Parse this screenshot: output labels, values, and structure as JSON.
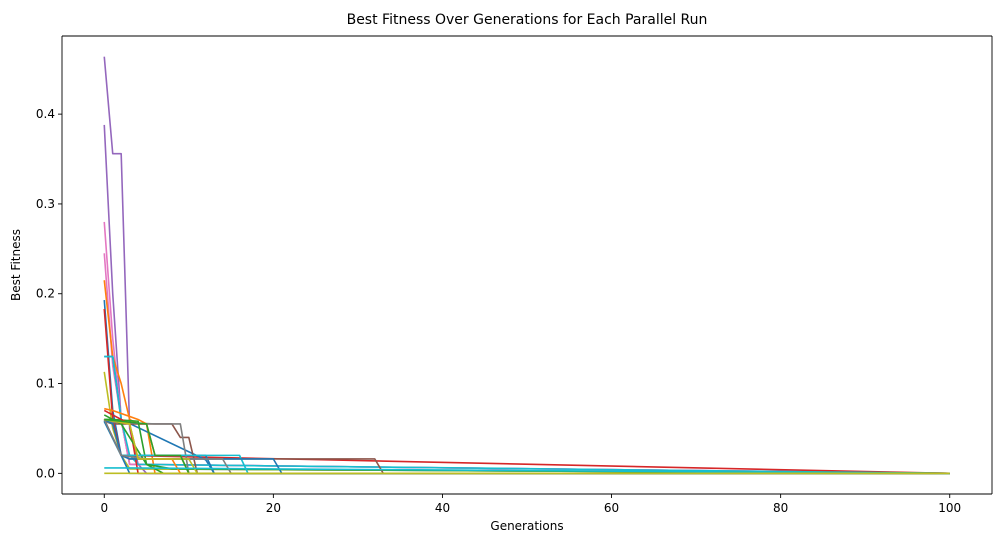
{
  "chart_data": {
    "type": "line",
    "title": "Best Fitness Over Generations for Each Parallel Run",
    "xlabel": "Generations",
    "ylabel": "Best Fitness",
    "xlim": [
      -5,
      105
    ],
    "ylim": [
      -0.023,
      0.487
    ],
    "xticks": [
      0,
      20,
      40,
      60,
      80,
      100
    ],
    "yticks": [
      0.0,
      0.1,
      0.2,
      0.3,
      0.4
    ],
    "ytick_labels": [
      "0.0",
      "0.1",
      "0.2",
      "0.3",
      "0.4"
    ],
    "grid": false,
    "legend": "none",
    "series": [
      {
        "color": "#9467bd",
        "x": [
          0,
          1,
          2,
          3,
          4,
          5,
          100
        ],
        "y": [
          0.464,
          0.356,
          0.356,
          0.05,
          0.01,
          0.0,
          0.0
        ]
      },
      {
        "color": "#9467bd",
        "x": [
          0,
          1,
          2,
          3,
          100
        ],
        "y": [
          0.388,
          0.2,
          0.06,
          0.01,
          0.0
        ]
      },
      {
        "color": "#e377c2",
        "x": [
          0,
          1,
          2,
          3,
          100
        ],
        "y": [
          0.28,
          0.15,
          0.06,
          0.01,
          0.0
        ]
      },
      {
        "color": "#e377c2",
        "x": [
          0,
          1,
          2,
          3,
          100
        ],
        "y": [
          0.245,
          0.12,
          0.06,
          0.01,
          0.0
        ]
      },
      {
        "color": "#ff7f0e",
        "x": [
          0,
          1,
          2,
          3,
          4,
          5,
          6,
          100
        ],
        "y": [
          0.215,
          0.13,
          0.1,
          0.06,
          0.055,
          0.055,
          0.0,
          0.0
        ]
      },
      {
        "color": "#1f77b4",
        "x": [
          0,
          1,
          2,
          3,
          100
        ],
        "y": [
          0.193,
          0.07,
          0.02,
          0.005,
          0.0
        ]
      },
      {
        "color": "#d62728",
        "x": [
          0,
          1,
          2,
          100
        ],
        "y": [
          0.183,
          0.06,
          0.02,
          0.0
        ]
      },
      {
        "color": "#1f77b4",
        "x": [
          0,
          1,
          2,
          12,
          13,
          100
        ],
        "y": [
          0.13,
          0.13,
          0.06,
          0.015,
          0.0,
          0.0
        ]
      },
      {
        "color": "#17becf",
        "x": [
          0,
          1,
          2,
          3,
          4,
          100
        ],
        "y": [
          0.13,
          0.13,
          0.06,
          0.02,
          0.01,
          0.0
        ]
      },
      {
        "color": "#bcbd22",
        "x": [
          0,
          1,
          2,
          3,
          100
        ],
        "y": [
          0.113,
          0.05,
          0.02,
          0.005,
          0.0
        ]
      },
      {
        "color": "#8c564b",
        "x": [
          0,
          1,
          8,
          9,
          10,
          11,
          100
        ],
        "y": [
          0.058,
          0.055,
          0.055,
          0.04,
          0.04,
          0.0,
          0.0
        ]
      },
      {
        "color": "#7f7f7f",
        "x": [
          0,
          1,
          6,
          9,
          10,
          100
        ],
        "y": [
          0.057,
          0.057,
          0.055,
          0.055,
          0.0,
          0.0
        ]
      },
      {
        "color": "#2ca02c",
        "x": [
          0,
          1,
          4,
          5,
          7,
          100
        ],
        "y": [
          0.06,
          0.06,
          0.058,
          0.01,
          0.0,
          0.0
        ]
      },
      {
        "color": "#ff7f0e",
        "x": [
          0,
          1,
          4,
          5,
          6,
          9,
          10,
          100
        ],
        "y": [
          0.072,
          0.07,
          0.06,
          0.055,
          0.02,
          0.02,
          0.0,
          0.0
        ]
      },
      {
        "color": "#d62728",
        "x": [
          0,
          1,
          3,
          4,
          100
        ],
        "y": [
          0.07,
          0.065,
          0.055,
          0.0,
          0.0
        ]
      },
      {
        "color": "#2ca02c",
        "x": [
          0,
          1,
          2,
          5,
          8,
          100
        ],
        "y": [
          0.065,
          0.06,
          0.055,
          0.01,
          0.005,
          0.0
        ]
      },
      {
        "color": "#1f77b4",
        "x": [
          0,
          1,
          2,
          3,
          100
        ],
        "y": [
          0.06,
          0.055,
          0.02,
          0.0,
          0.0
        ]
      },
      {
        "color": "#1f77b4",
        "x": [
          0,
          2,
          3,
          12,
          13,
          100
        ],
        "y": [
          0.058,
          0.02,
          0.02,
          0.02,
          0.0,
          0.0
        ]
      },
      {
        "color": "#8c564b",
        "x": [
          0,
          2,
          3,
          32,
          33,
          100
        ],
        "y": [
          0.06,
          0.02,
          0.016,
          0.016,
          0.0,
          0.0
        ]
      },
      {
        "color": "#17becf",
        "x": [
          0,
          2,
          3,
          5,
          6,
          16,
          17,
          100
        ],
        "y": [
          0.058,
          0.02,
          0.02,
          0.02,
          0.02,
          0.02,
          0.0,
          0.0
        ]
      },
      {
        "color": "#1f77b4",
        "x": [
          0,
          2,
          3,
          20,
          21,
          100
        ],
        "y": [
          0.058,
          0.02,
          0.016,
          0.016,
          0.0,
          0.0
        ]
      },
      {
        "color": "#7f7f7f",
        "x": [
          0,
          2,
          5,
          14,
          15,
          100
        ],
        "y": [
          0.06,
          0.02,
          0.016,
          0.016,
          0.0,
          0.0
        ]
      },
      {
        "color": "#ff7f0e",
        "x": [
          0,
          3,
          4,
          8,
          9,
          100
        ],
        "y": [
          0.06,
          0.055,
          0.016,
          0.016,
          0.0,
          0.0
        ]
      },
      {
        "color": "#bcbd22",
        "x": [
          0,
          3,
          4,
          10,
          11,
          100
        ],
        "y": [
          0.06,
          0.055,
          0.016,
          0.016,
          0.0,
          0.0
        ]
      },
      {
        "color": "#2ca02c",
        "x": [
          0,
          5,
          6,
          9,
          10,
          100
        ],
        "y": [
          0.06,
          0.055,
          0.02,
          0.02,
          0.0,
          0.0
        ]
      },
      {
        "color": "#17becf",
        "x": [
          0,
          3,
          100
        ],
        "y": [
          0.006,
          0.006,
          0.0
        ]
      },
      {
        "color": "#bcbd22",
        "x": [
          0,
          100
        ],
        "y": [
          0.0,
          0.0
        ]
      }
    ]
  }
}
